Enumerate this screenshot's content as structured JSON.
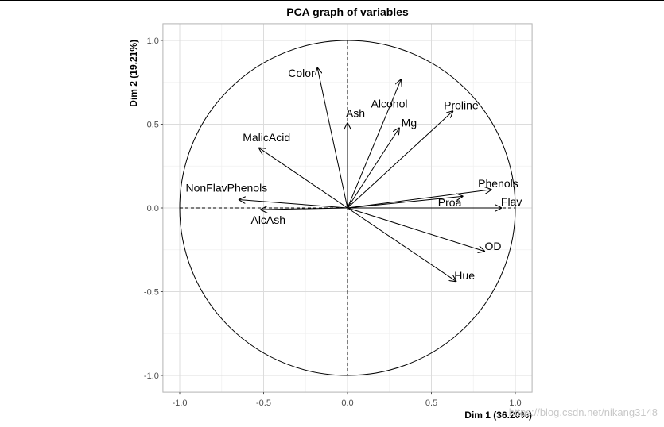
{
  "chart_data": {
    "type": "scatter",
    "title": "PCA graph of variables",
    "xlabel": "Dim 1 (36.20%)",
    "ylabel": "Dim 2 (19.21%)",
    "xlim": [
      -1.1,
      1.1
    ],
    "ylim": [
      -1.1,
      1.1
    ],
    "x_ticks": [
      -1.0,
      -0.5,
      0.0,
      0.5,
      1.0
    ],
    "y_ticks": [
      -1.0,
      -0.5,
      0.0,
      0.5,
      1.0
    ],
    "x_tick_labels": [
      "-1.0",
      "-0.5",
      "0.0",
      "0.5",
      "1.0"
    ],
    "y_tick_labels": [
      "-1.0",
      "-0.5",
      "0.0",
      "0.5",
      "1.0"
    ],
    "grid": true,
    "unit_circle": true,
    "vectors": [
      {
        "name": "Color",
        "x": -0.18,
        "y": 0.84,
        "dashed": false
      },
      {
        "name": "Alcohol",
        "x": 0.32,
        "y": 0.77,
        "dashed": false
      },
      {
        "name": "Ash",
        "x": 0.0,
        "y": 0.51,
        "dashed": true
      },
      {
        "name": "Mg",
        "x": 0.31,
        "y": 0.48,
        "dashed": false
      },
      {
        "name": "Proline",
        "x": 0.63,
        "y": 0.58,
        "dashed": false
      },
      {
        "name": "MalicAcid",
        "x": -0.53,
        "y": 0.36,
        "dashed": false
      },
      {
        "name": "NonFlavPhenols",
        "x": -0.65,
        "y": 0.05,
        "dashed": false
      },
      {
        "name": "AlcAsh",
        "x": -0.52,
        "y": -0.01,
        "dashed": false
      },
      {
        "name": "Phenols",
        "x": 0.86,
        "y": 0.11,
        "dashed": false
      },
      {
        "name": "Proa",
        "x": 0.69,
        "y": 0.07,
        "dashed": false
      },
      {
        "name": "Flav",
        "x": 0.92,
        "y": 0.0,
        "dashed": false
      },
      {
        "name": "OD",
        "x": 0.82,
        "y": -0.26,
        "dashed": false
      },
      {
        "name": "Hue",
        "x": 0.65,
        "y": -0.44,
        "dashed": false
      }
    ]
  },
  "watermark": "https://blog.csdn.net/nikang3148"
}
